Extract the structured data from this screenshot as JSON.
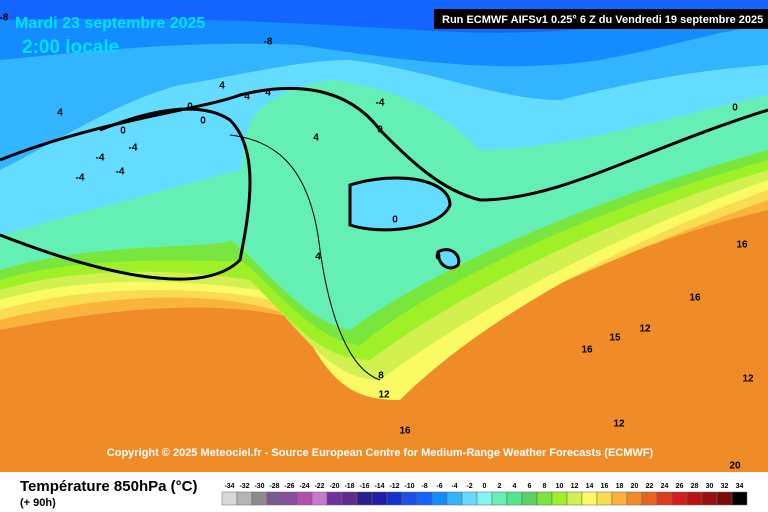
{
  "header": {
    "date": "Mardi 23 septembre 2025",
    "time": "2:00 locale",
    "run": "Run ECMWF AIFSv1 0.25° 6 Z du Vendredi 19 septembre 2025"
  },
  "copyright": "Copyright © 2025 Meteociel.fr - Source European Centre for Medium-Range Weather Forecasts (ECMWF)",
  "footer": {
    "title": "Température 850hPa (°C)",
    "lead": "(+ 90h)"
  },
  "legend": {
    "labels": [
      -34,
      -32,
      -30,
      -28,
      -26,
      -24,
      -22,
      -20,
      -18,
      -16,
      -14,
      -12,
      -10,
      -8,
      -6,
      -4,
      -2,
      0,
      2,
      4,
      6,
      8,
      10,
      12,
      14,
      16,
      18,
      20,
      22,
      24,
      26,
      28,
      30,
      32,
      34
    ],
    "colors": [
      "#d8d8d8",
      "#b4b4b4",
      "#8c8c8c",
      "#7a5a8c",
      "#8a4d9e",
      "#b04fb0",
      "#c878d0",
      "#7030a0",
      "#5c2b8c",
      "#2a1e8a",
      "#1e1ea8",
      "#1432c8",
      "#1e50e6",
      "#1464ff",
      "#148cff",
      "#32b4ff",
      "#64dcff",
      "#82f5f0",
      "#64f0b4",
      "#50e68c",
      "#5ad264",
      "#78e63c",
      "#a0f028",
      "#d2f050",
      "#fafa64",
      "#fadc50",
      "#fab43c",
      "#f08c28",
      "#e6641e",
      "#dc3c1e",
      "#d21e1e",
      "#b41414",
      "#961010",
      "#780a0a",
      "#000000"
    ]
  },
  "contour_labels": [
    -8,
    -8,
    -4,
    0,
    0,
    4,
    4,
    4,
    0,
    0,
    4,
    0,
    -4,
    -4,
    -4,
    -4,
    4,
    0,
    0,
    4,
    16,
    16,
    12,
    15,
    16,
    8,
    12,
    12,
    16,
    12,
    20
  ]
}
